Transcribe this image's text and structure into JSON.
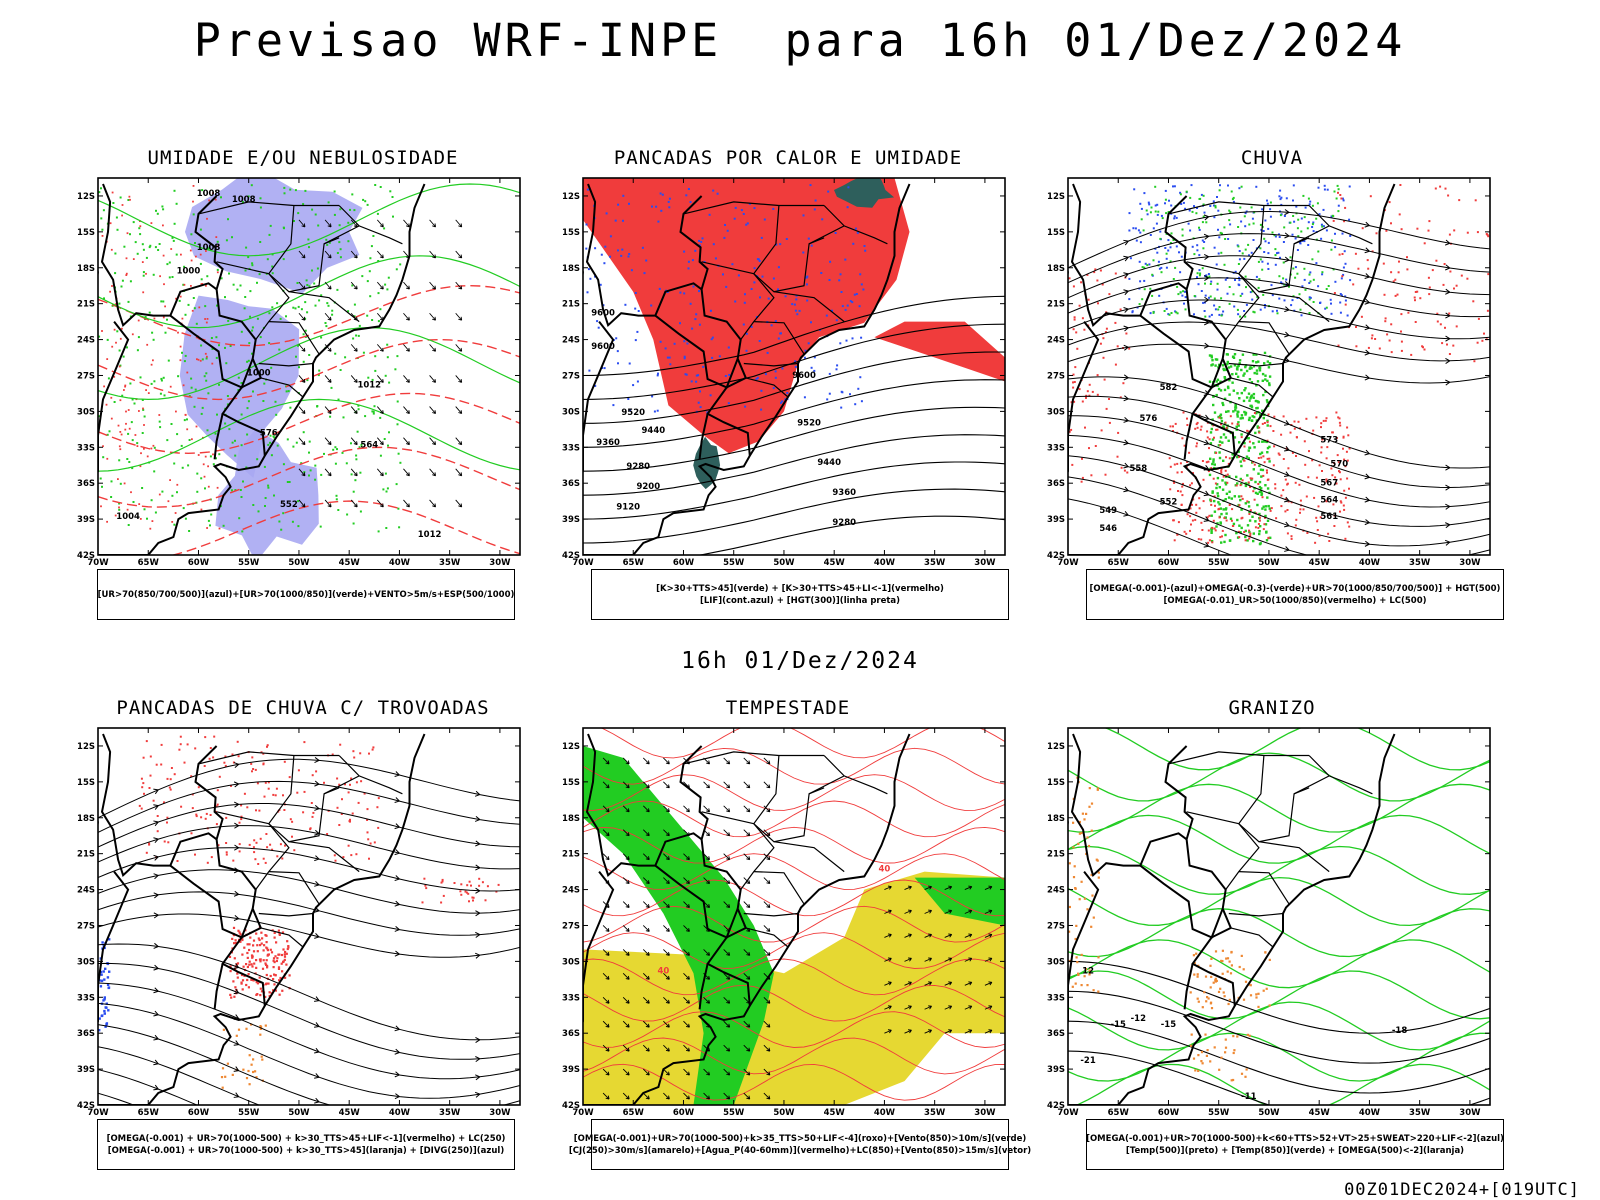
{
  "header": {
    "title": "Previsao WRF-INPE  para 16h 01/Dez/2024"
  },
  "middle": {
    "time_label": "16h 01/Dez/2024"
  },
  "footer": {
    "run_label": "00Z01DEC2024+[019UTC]"
  },
  "colors": {
    "red": "#f03c3c",
    "green": "#22cc22",
    "blue": "#2a4cf0",
    "lavender": "#a9a9f2",
    "yellow": "#e6d832",
    "darkteal": "#2e5f5c",
    "orange": "#ee8833",
    "black": "#000000"
  },
  "axes": {
    "lat_ticks": [
      "12S",
      "15S",
      "18S",
      "21S",
      "24S",
      "27S",
      "30S",
      "33S",
      "36S",
      "39S",
      "42S"
    ],
    "lon_ticks": [
      "70W",
      "65W",
      "60W",
      "55W",
      "50W",
      "45W",
      "40W",
      "35W",
      "30W"
    ]
  },
  "chart_data": [
    {
      "type": "map",
      "id": "p1",
      "title": "UMIDADE E/OU NEBULOSIDADE",
      "legend": [
        "[UR>70(850/700/500)](azul)+[UR>70(1000/850)](verde)+VENTO>5m/s+ESP(500/1000)"
      ],
      "contour_labels": [
        "1008",
        "1008",
        "1008",
        "1000",
        "1000",
        "1004",
        "1012",
        "564",
        "576",
        "552",
        "1012"
      ]
    },
    {
      "type": "map",
      "id": "p2",
      "title": "PANCADAS POR CALOR E UMIDADE",
      "legend": [
        "[K>30+TTS>45](verde) + [K>30+TTS>45+LI<-1](vermelho)",
        "[LIF](cont.azul) + [HGT(300)](linha preta)"
      ],
      "contour_labels": [
        "9600",
        "9600",
        "9600",
        "9520",
        "9440",
        "9360",
        "9280",
        "9200",
        "9120",
        "9520",
        "9440",
        "9360",
        "9280"
      ]
    },
    {
      "type": "map",
      "id": "p3",
      "title": "CHUVA",
      "legend": [
        "[OMEGA(-0.001)-(azul)+OMEGA(-0.3)-(verde)+UR>70(1000/850/700/500)] + HGT(500)",
        "[OMEGA(-0.01)_UR>50(1000/850)(vermelho) + LC(500)"
      ],
      "contour_labels": [
        "582",
        "576",
        "573",
        "570",
        "567",
        "564",
        "561",
        "558",
        "552",
        "549",
        "546"
      ]
    },
    {
      "type": "map",
      "id": "p4",
      "title": "PANCADAS DE CHUVA C/ TROVOADAS",
      "legend": [
        "[OMEGA(-0.001) + UR>70(1000-500) + k>30_TTS>45+LIF<-1](vermelho) + LC(250)",
        "[OMEGA(-0.001) + UR>70(1000-500) + k>30_TTS>45](laranja) + [DIVG(250)](azul)"
      ],
      "contour_labels": []
    },
    {
      "type": "map",
      "id": "p5",
      "title": "TEMPESTADE",
      "legend": [
        "[OMEGA(-0.001)+UR>70(1000-500)+k>35_TTS>50+LIF<-4](roxo)+[Vento(850)>10m/s](verde)",
        "[CJ(250)>30m/s](amarelo)+[Agua_P(40-60mm)](vermelho)+LC(850)+[Vento(850)>15m/s](vetor)"
      ],
      "contour_labels": [
        "40",
        "40"
      ]
    },
    {
      "type": "map",
      "id": "p6",
      "title": "GRANIZO",
      "legend": [
        "[OMEGA(-0.001)+UR>70(1000-500)+k<60+TTS>52+VT>25+SWEAT>220+LIF<-2](azul)",
        "[Temp(500)](preto) + [Temp(850)](verde) + [OMEGA(500)<-2](laranja)"
      ],
      "contour_labels": [
        "-15",
        "-12",
        "-15",
        "-21",
        "-18",
        "-11",
        "12"
      ]
    }
  ]
}
